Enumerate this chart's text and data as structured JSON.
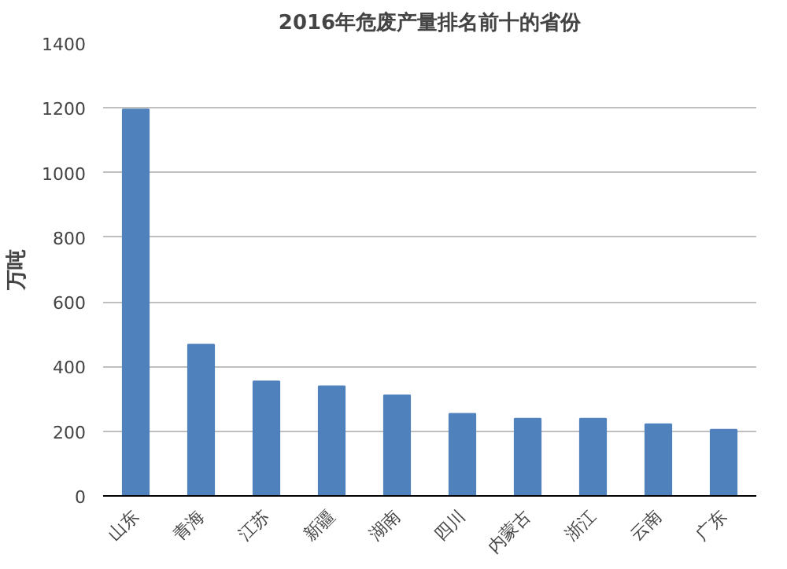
{
  "chart_data": {
    "type": "bar",
    "title": "2016年危废产量排名前十的省份",
    "ylabel": "万吨",
    "categories": [
      "山东",
      "青海",
      "江苏",
      "新疆",
      "湖南",
      "四川",
      "内蒙古",
      "浙江",
      "云南",
      "广东"
    ],
    "values": [
      1195,
      468,
      354,
      339,
      311,
      254,
      239,
      239,
      222,
      205
    ],
    "color": "#4f81bd",
    "ylim": [
      0,
      1400
    ],
    "yticks": [
      0,
      200,
      400,
      600,
      800,
      1000,
      1200,
      1400
    ],
    "grid": "y"
  }
}
